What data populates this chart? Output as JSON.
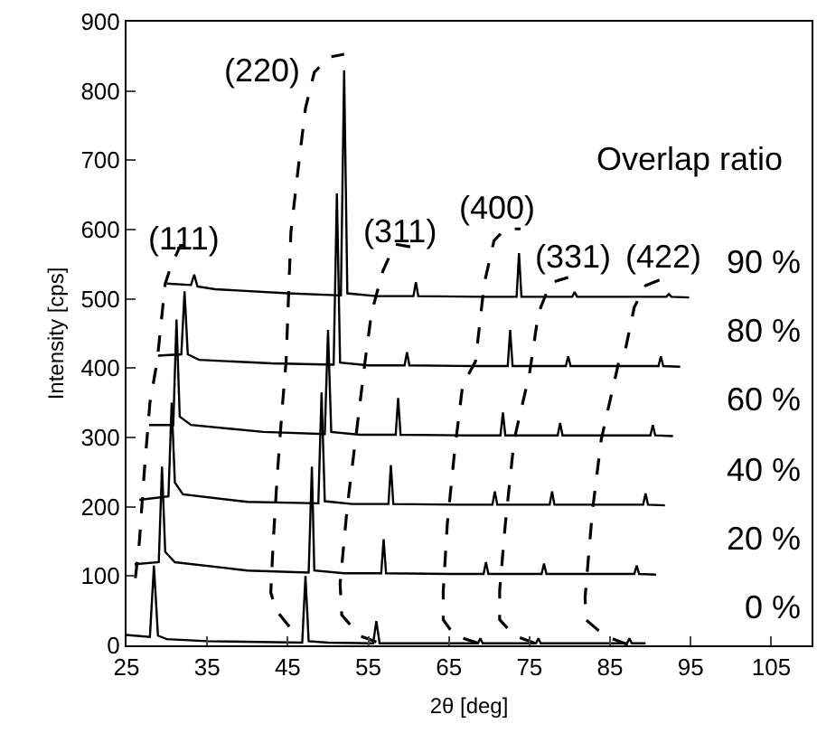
{
  "chart_data": {
    "type": "line",
    "xlabel": "2θ [deg]",
    "ylabel": "Intensity [cps]",
    "xlim": [
      25,
      110
    ],
    "xticks": [
      25,
      35,
      45,
      55,
      65,
      75,
      85,
      95,
      105
    ],
    "ylim": [
      0,
      900
    ],
    "yticks": [
      0,
      100,
      200,
      300,
      400,
      500,
      600,
      700,
      800,
      900
    ],
    "grid": false,
    "legend": false,
    "marker": "none",
    "series": [
      {
        "name": "0 %",
        "color": "#000000",
        "x": [
          25,
          27.9,
          28.4,
          28.9,
          30,
          35,
          46.8,
          47.2,
          47.6,
          50,
          55.6,
          56.0,
          56.4,
          60,
          68.6,
          68.9,
          69.2,
          75.8,
          76.1,
          76.4,
          87.1,
          87.4,
          87.7,
          89.4
        ],
        "values": [
          15,
          12,
          115,
          14,
          9,
          6,
          4,
          100,
          6,
          4,
          3,
          35,
          3,
          3,
          3,
          10,
          3,
          3,
          10,
          3,
          3,
          10,
          3,
          3
        ]
      },
      {
        "name": "20 %",
        "color": "#000000",
        "x": [
          26.0,
          29.0,
          29.4,
          29.8,
          31,
          40,
          47.6,
          48.0,
          48.3,
          52,
          56.6,
          56.9,
          57.2,
          65,
          69.3,
          69.6,
          69.9,
          76.5,
          76.8,
          77.1,
          88.0,
          88.3,
          88.6,
          90.7
        ],
        "values": [
          117,
          120,
          258,
          135,
          120,
          108,
          105,
          258,
          108,
          104,
          104,
          153,
          104,
          103,
          103,
          120,
          103,
          103,
          118,
          103,
          103,
          115,
          103,
          102
        ]
      },
      {
        "name": "40 %",
        "color": "#000000",
        "x": [
          26.6,
          30.2,
          30.6,
          31.0,
          32,
          40,
          48.8,
          49.2,
          49.6,
          53,
          57.5,
          57.8,
          58.1,
          66,
          70.4,
          70.7,
          71.0,
          77.5,
          77.8,
          78.1,
          89.1,
          89.4,
          89.7,
          91.8
        ],
        "values": [
          210,
          215,
          350,
          235,
          218,
          207,
          205,
          365,
          208,
          204,
          204,
          260,
          204,
          203,
          203,
          222,
          203,
          203,
          222,
          203,
          203,
          219,
          203,
          202
        ]
      },
      {
        "name": "60 %",
        "color": "#000000",
        "x": [
          27.8,
          30.8,
          31.2,
          31.6,
          33,
          42,
          49.6,
          50.0,
          50.4,
          54,
          58.4,
          58.7,
          59.0,
          67,
          71.4,
          71.7,
          72.0,
          78.5,
          78.8,
          79.1,
          90.0,
          90.3,
          90.6,
          92.8
        ],
        "values": [
          318,
          318,
          470,
          330,
          318,
          308,
          305,
          455,
          308,
          304,
          304,
          357,
          304,
          303,
          303,
          336,
          303,
          303,
          321,
          303,
          303,
          318,
          303,
          302
        ]
      },
      {
        "name": "80 %",
        "color": "#000000",
        "x": [
          28.9,
          31.8,
          32.2,
          32.6,
          34,
          43,
          50.7,
          51.1,
          51.5,
          55,
          59.5,
          59.8,
          60.1,
          68,
          72.3,
          72.6,
          72.9,
          79.5,
          79.8,
          80.1,
          91.0,
          91.3,
          91.6,
          93.7
        ],
        "values": [
          418,
          420,
          511,
          420,
          412,
          407,
          405,
          652,
          408,
          404,
          404,
          423,
          404,
          403,
          403,
          455,
          403,
          403,
          417,
          403,
          403,
          417,
          403,
          402
        ]
      },
      {
        "name": "90 %",
        "color": "#000000",
        "x": [
          30.0,
          33.0,
          33.4,
          33.8,
          36,
          45,
          51.6,
          52.0,
          52.4,
          56,
          60.6,
          60.9,
          61.2,
          69,
          73.4,
          73.7,
          74.0,
          80.3,
          80.6,
          80.9,
          92.0,
          92.3,
          92.6,
          94.8
        ],
        "values": [
          522,
          520,
          535,
          518,
          514,
          508,
          505,
          830,
          508,
          504,
          504,
          524,
          504,
          503,
          503,
          566,
          503,
          503,
          510,
          503,
          503,
          507,
          503,
          502
        ]
      },
      {
        "color": "#000000",
        "line_style": "dashed",
        "x": [
          26.1,
          26.6,
          27.2,
          27.9,
          28.8,
          29.8,
          30.6,
          31.7,
          33.7
        ],
        "values": [
          97,
          150,
          250,
          350,
          410,
          522,
          550,
          577,
          577
        ]
      },
      {
        "color": "#000000",
        "line_style": "dashed",
        "x": [
          45.2,
          43.6,
          42.9,
          43.2,
          43.7,
          44.3,
          44.8,
          45.4,
          46.3,
          47.2,
          48.3,
          50.2,
          52.0
        ],
        "values": [
          27,
          50,
          76,
          149,
          245,
          340,
          410,
          597,
          688,
          775,
          827,
          849,
          853
        ]
      },
      {
        "color": "#000000",
        "line_style": "dashed",
        "x": [
          56.0,
          53.9,
          51.7,
          51.5,
          52.4,
          53.5,
          54.6,
          55.4,
          56.8,
          58.3,
          60.2
        ],
        "values": [
          5,
          14,
          44,
          89,
          201,
          305,
          410,
          480,
          540,
          579,
          575
        ]
      },
      {
        "color": "#000000",
        "line_style": "dashed",
        "x": [
          68.7,
          65.7,
          64.3,
          64.3,
          64.8,
          65.7,
          66.7,
          68.3,
          69.4,
          70.6,
          72.0,
          73.9
        ],
        "values": [
          3,
          14,
          37,
          79,
          175,
          279,
          375,
          410,
          523,
          584,
          601,
          601
        ]
      },
      {
        "color": "#000000",
        "line_style": "dashed",
        "x": [
          75.7,
          73.1,
          71.3,
          71.3,
          72.0,
          73.1,
          75.0,
          76.1,
          77.6,
          79.8
        ],
        "values": [
          3,
          14,
          37,
          79,
          175,
          297,
          392,
          479,
          523,
          531
        ]
      },
      {
        "color": "#000000",
        "line_style": "dashed",
        "x": [
          87.2,
          84.3,
          82.0,
          81.9,
          82.8,
          83.9,
          86.1,
          86.9,
          88.0,
          89.4,
          91.7
        ],
        "values": [
          1,
          14,
          37,
          70,
          193,
          297,
          410,
          427,
          488,
          519,
          530
        ]
      }
    ],
    "annotations": [
      "(111)",
      "(220)",
      "(311)",
      "(400)",
      "(331)",
      "(422)",
      "Overlap ratio"
    ]
  }
}
